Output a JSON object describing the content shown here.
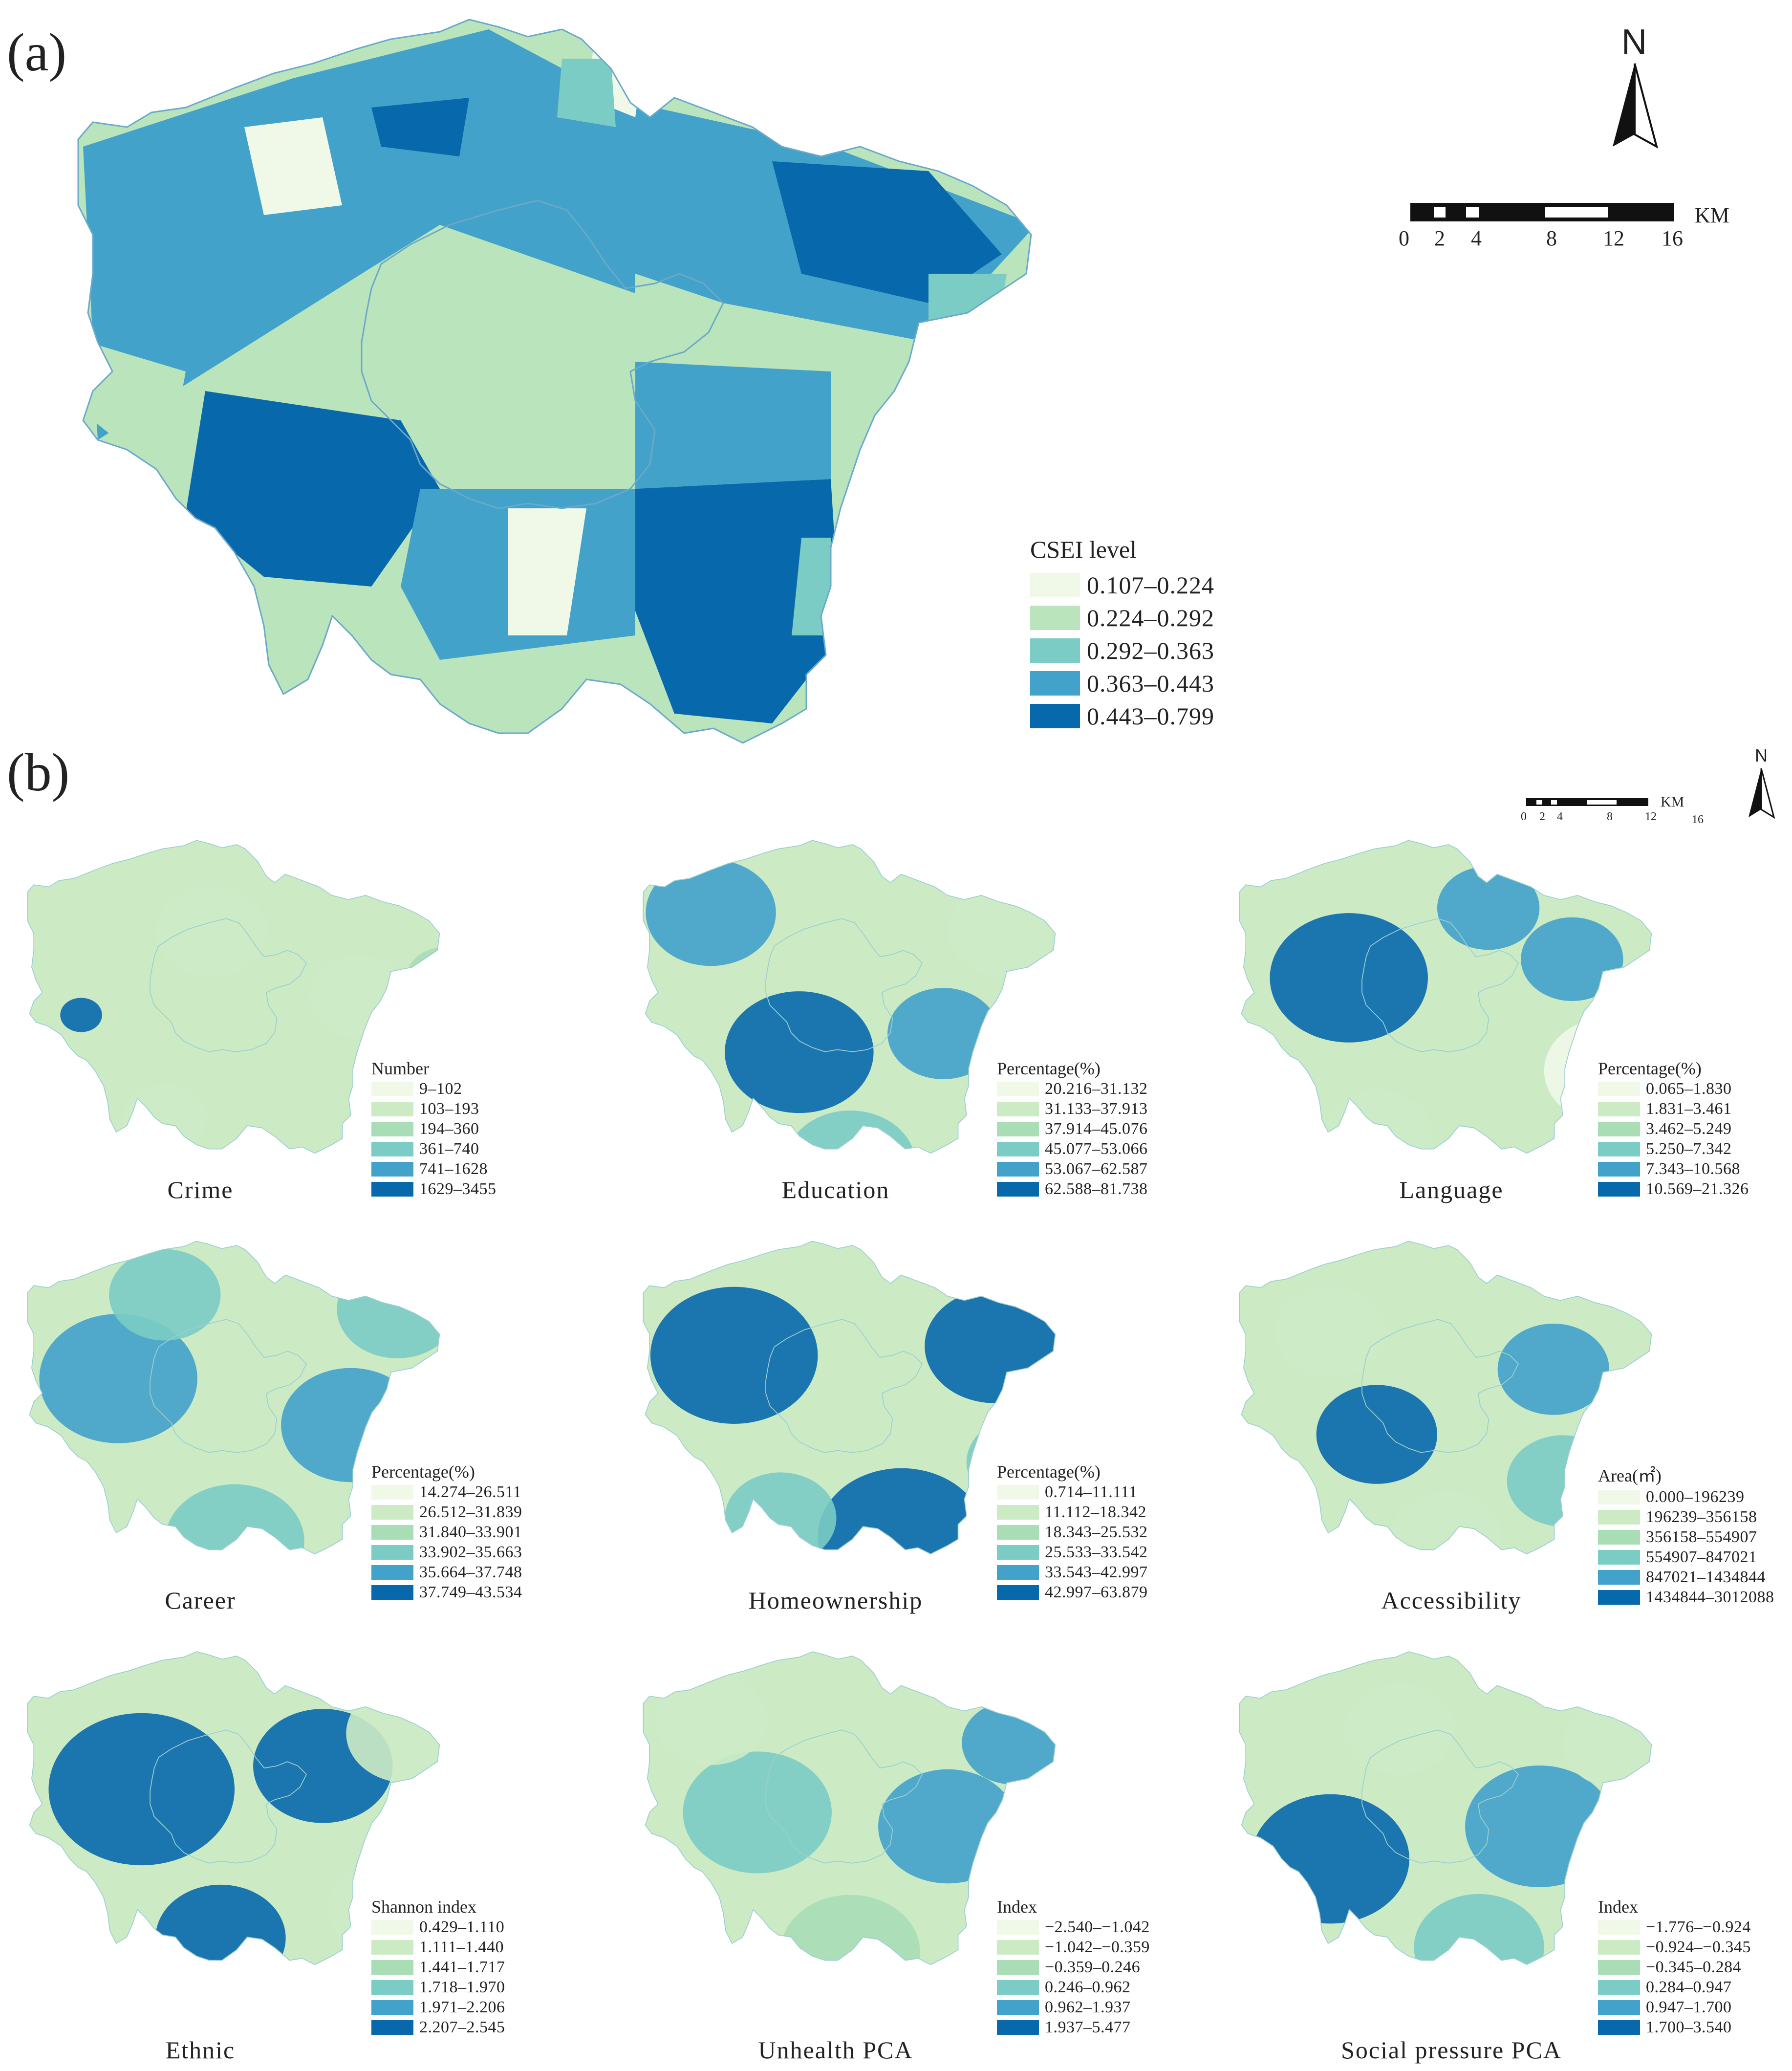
{
  "panel_a": {
    "label": "(a)",
    "north": "N",
    "scale": {
      "unit": "KM",
      "ticks": [
        "0",
        "2",
        "4",
        "8",
        "12",
        "16"
      ]
    },
    "legend": {
      "title": "CSEI level",
      "classes": [
        {
          "range": "0.107–0.224",
          "color": "#f0f9e8"
        },
        {
          "range": "0.224–0.292",
          "color": "#bae4bc"
        },
        {
          "range": "0.292–0.363",
          "color": "#7bccc4"
        },
        {
          "range": "0.363–0.443",
          "color": "#43a2ca"
        },
        {
          "range": "0.443–0.799",
          "color": "#0868ac"
        }
      ]
    }
  },
  "panel_b": {
    "label": "(b)",
    "north": "N",
    "scale": {
      "unit": "KM",
      "ticks": [
        "0",
        "2",
        "4",
        "8",
        "12",
        "16"
      ]
    },
    "palette": [
      "#f0f9e8",
      "#ccebc5",
      "#a8ddb5",
      "#7bccc4",
      "#43a2ca",
      "#0868ac"
    ],
    "maps": [
      {
        "caption": "Crime",
        "legend_title": "Number",
        "classes": [
          "9–102",
          "103–193",
          "194–360",
          "361–740",
          "741–1628",
          "1629–3455"
        ]
      },
      {
        "caption": "Education",
        "legend_title": "Percentage(%)",
        "classes": [
          "20.216–31.132",
          "31.133–37.913",
          "37.914–45.076",
          "45.077–53.066",
          "53.067–62.587",
          "62.588–81.738"
        ]
      },
      {
        "caption": "Language",
        "legend_title": "Percentage(%)",
        "classes": [
          "0.065–1.830",
          "1.831–3.461",
          "3.462–5.249",
          "5.250–7.342",
          "7.343–10.568",
          "10.569–21.326"
        ]
      },
      {
        "caption": "Career",
        "legend_title": "Percentage(%)",
        "classes": [
          "14.274–26.511",
          "26.512–31.839",
          "31.840–33.901",
          "33.902–35.663",
          "35.664–37.748",
          "37.749–43.534"
        ]
      },
      {
        "caption": "Homeownership",
        "legend_title": "Percentage(%)",
        "classes": [
          "0.714–11.111",
          "11.112–18.342",
          "18.343–25.532",
          "25.533–33.542",
          "33.543–42.997",
          "42.997–63.879"
        ]
      },
      {
        "caption": "Accessibility",
        "legend_title": "Area(㎡)",
        "classes": [
          "0.000–196239",
          "196239–356158",
          "356158–554907",
          "554907–847021",
          "847021–1434844",
          "1434844–3012088"
        ]
      },
      {
        "caption": "Ethnic",
        "legend_title": "Shannon index",
        "classes": [
          "0.429–1.110",
          "1.111–1.440",
          "1.441–1.717",
          "1.718–1.970",
          "1.971–2.206",
          "2.207–2.545"
        ]
      },
      {
        "caption": "Unhealth PCA",
        "legend_title": "Index",
        "classes": [
          "−2.540–−1.042",
          "−1.042–−0.359",
          "−0.359–0.246",
          "0.246–0.962",
          "0.962–1.937",
          "1.937–5.477"
        ]
      },
      {
        "caption": "Social pressure PCA",
        "legend_title": "Index",
        "classes": [
          "−1.776–−0.924",
          "−0.924–−0.345",
          "−0.345–0.284",
          "0.284–0.947",
          "0.947–1.700",
          "1.700–3.540"
        ]
      }
    ]
  }
}
